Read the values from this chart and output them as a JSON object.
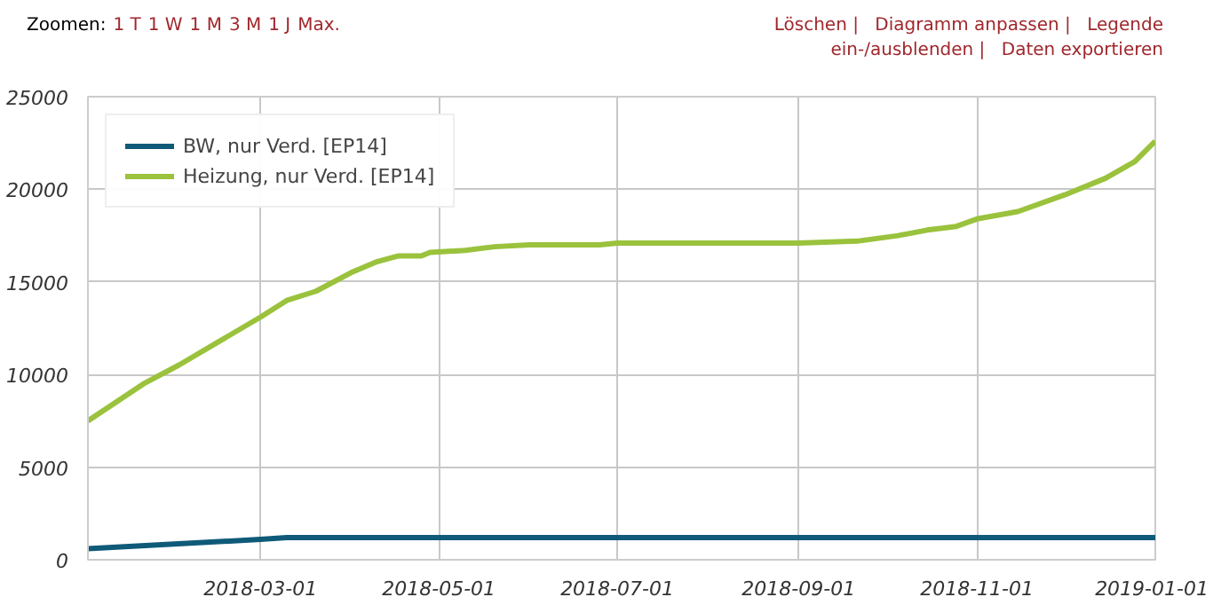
{
  "chart_data": {
    "type": "line",
    "annotations": [
      "Zoomen:",
      "1 T",
      "1 W",
      "1 M",
      "3 M",
      "1 J",
      "Max.",
      "Löschen |",
      "Diagramm anpassen |",
      "Legende ein-/ausblenden |",
      "Daten exportieren"
    ],
    "xlim": [
      "2018-01-01",
      "2019-01-01"
    ],
    "xticks": [
      "2018-03-01",
      "2018-05-01",
      "2018-07-01",
      "2018-09-01",
      "2018-11-01",
      "2019-01-01"
    ],
    "ylim": [
      0,
      25000
    ],
    "yticks": [
      0,
      5000,
      10000,
      15000,
      20000,
      25000
    ],
    "grid": true,
    "legend": "top left",
    "series": [
      {
        "name": "BW, nur Verd. [EP14]",
        "color": "#0f5a78",
        "x": [
          "2018-01-01",
          "2018-03-01",
          "2018-03-10",
          "2019-01-01"
        ],
        "values": [
          600,
          1100,
          1200,
          1200
        ]
      },
      {
        "name": "Heizung, nur Verd. [EP14]",
        "color": "#9ac23c",
        "x": [
          "2018-01-01",
          "2018-01-20",
          "2018-02-01",
          "2018-02-15",
          "2018-03-01",
          "2018-03-10",
          "2018-03-20",
          "2018-04-01",
          "2018-04-10",
          "2018-04-17",
          "2018-04-25",
          "2018-04-28",
          "2018-05-10",
          "2018-05-20",
          "2018-06-01",
          "2018-06-25",
          "2018-07-01",
          "2018-08-01",
          "2018-09-01",
          "2018-09-21",
          "2018-10-05",
          "2018-10-15",
          "2018-10-25",
          "2018-11-01",
          "2018-11-15",
          "2018-12-01",
          "2018-12-15",
          "2018-12-25",
          "2019-01-01"
        ],
        "values": [
          7500,
          9500,
          10500,
          11800,
          13100,
          14000,
          14500,
          15500,
          16100,
          16400,
          16400,
          16600,
          16700,
          16900,
          17000,
          17000,
          17100,
          17100,
          17100,
          17200,
          17500,
          17800,
          18000,
          18400,
          18800,
          19700,
          20600,
          21500,
          22600
        ]
      }
    ]
  }
}
